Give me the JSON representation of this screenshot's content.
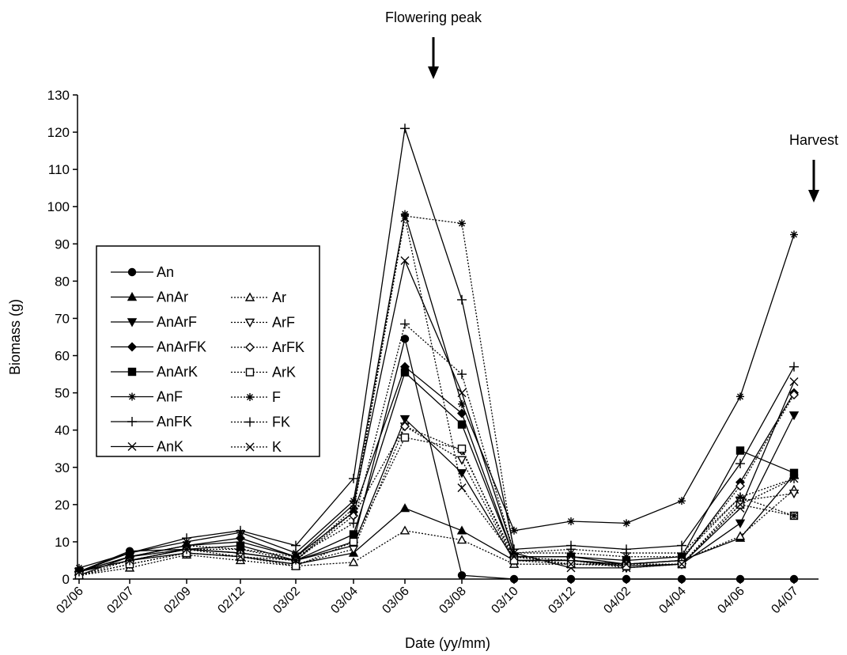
{
  "chart_data": {
    "type": "line",
    "title": "",
    "xlabel": "Date (yy/mm)",
    "ylabel": "Biomass (g)",
    "ylim": [
      0,
      130
    ],
    "yticks": [
      0,
      10,
      20,
      30,
      40,
      50,
      60,
      70,
      80,
      90,
      100,
      110,
      120,
      130
    ],
    "categories": [
      "02/06",
      "02/07",
      "02/09",
      "02/12",
      "03/02",
      "03/04",
      "03/06",
      "03/08",
      "03/10",
      "03/12",
      "04/02",
      "04/04",
      "04/06",
      "04/07"
    ],
    "grid": false,
    "legend_position": "left",
    "annotations": [
      {
        "text": "Flowering peak",
        "category": "03/06",
        "type": "arrow-down"
      },
      {
        "text": "Harvest",
        "category": "04/07",
        "type": "arrow-down"
      }
    ],
    "series": [
      {
        "name": "An",
        "marker": "circle",
        "style": "solid",
        "values": [
          2,
          7.5,
          8,
          7,
          5,
          10,
          64.5,
          1,
          0,
          0,
          0,
          0,
          0,
          0
        ]
      },
      {
        "name": "AnAr",
        "marker": "triangle-up",
        "style": "solid",
        "values": [
          2,
          5,
          7,
          6,
          4,
          7,
          19,
          13,
          5,
          5,
          4,
          5,
          11,
          28
        ]
      },
      {
        "name": "AnArF",
        "marker": "triangle-down",
        "style": "solid",
        "values": [
          2,
          5,
          8,
          7,
          5,
          9,
          43,
          28.5,
          5,
          5,
          3.5,
          4,
          15,
          44
        ]
      },
      {
        "name": "AnArFK",
        "marker": "diamond",
        "style": "solid",
        "values": [
          2,
          6,
          9,
          11,
          6,
          18,
          57,
          44.5,
          6,
          6,
          4,
          5,
          26,
          50
        ]
      },
      {
        "name": "AnArK",
        "marker": "square",
        "style": "solid",
        "values": [
          2,
          6,
          8,
          9,
          5,
          12,
          55.5,
          41.5,
          6,
          6,
          5,
          6,
          34.5,
          28.5
        ]
      },
      {
        "name": "AnF",
        "marker": "asterisk",
        "style": "solid",
        "values": [
          3,
          7,
          10,
          12.5,
          7,
          21,
          98,
          47,
          13,
          15.5,
          15,
          21,
          49,
          92.5
        ]
      },
      {
        "name": "AnFK",
        "marker": "plus",
        "style": "solid",
        "values": [
          2,
          7,
          11,
          13,
          9,
          27,
          121,
          75,
          8,
          9,
          8,
          9,
          31,
          57
        ]
      },
      {
        "name": "AnK",
        "marker": "x",
        "style": "solid",
        "values": [
          1,
          6,
          9,
          10,
          6,
          20,
          85.5,
          50,
          7,
          3,
          3,
          4,
          19,
          53
        ]
      },
      {
        "name": "Ar",
        "marker": "triangle-up-open",
        "style": "dotted",
        "values": [
          1,
          3,
          6.5,
          5,
          3.5,
          4.5,
          13,
          10.5,
          4,
          4,
          4,
          5,
          11.5,
          24
        ]
      },
      {
        "name": "ArF",
        "marker": "triangle-down-open",
        "style": "dotted",
        "values": [
          1,
          4,
          7,
          6,
          4,
          8,
          41,
          32,
          5,
          5,
          3,
          4,
          21,
          23
        ]
      },
      {
        "name": "ArFK",
        "marker": "diamond-open",
        "style": "dotted",
        "values": [
          1,
          5,
          8,
          7,
          5,
          17,
          41,
          34.5,
          6,
          5,
          4,
          5,
          25,
          49.5
        ]
      },
      {
        "name": "ArK",
        "marker": "square-open",
        "style": "dotted",
        "values": [
          1,
          4,
          7,
          6,
          3.5,
          10,
          38,
          35,
          5,
          4,
          3.5,
          4,
          20,
          17
        ]
      },
      {
        "name": "F",
        "marker": "asterisk",
        "style": "dotted",
        "values": [
          2,
          6,
          9,
          8,
          5,
          19,
          97.5,
          95.5,
          7,
          7,
          6,
          6,
          22,
          17
        ]
      },
      {
        "name": "FK",
        "marker": "plus",
        "style": "dotted",
        "values": [
          2,
          5,
          8,
          8,
          6,
          15,
          68.5,
          55,
          7,
          8,
          7,
          7,
          22,
          27
        ]
      },
      {
        "name": "K",
        "marker": "x",
        "style": "dotted",
        "values": [
          2,
          5,
          8,
          6,
          5,
          18,
          97,
          24.5,
          6,
          4,
          4,
          4,
          20,
          27
        ]
      }
    ]
  }
}
